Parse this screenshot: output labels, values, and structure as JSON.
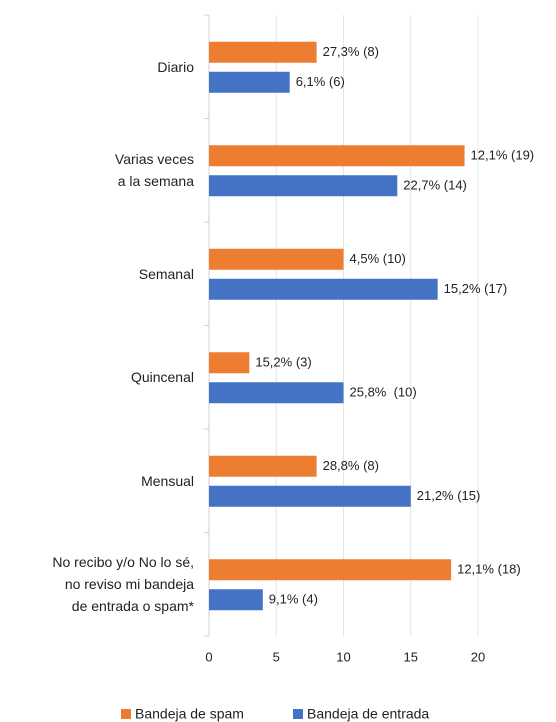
{
  "chart_data": {
    "type": "hbar",
    "categories": [
      "Diario",
      "Varias veces\na la semana",
      "Semanal",
      "Quincenal",
      "Mensual",
      "No recibo y/o No lo sé,\nno reviso mi bandeja\nde entrada o spam*"
    ],
    "series": [
      {
        "name": "Bandeja de spam",
        "color": "#ED7D31",
        "values": [
          8,
          19,
          10,
          3,
          8,
          18
        ],
        "value_labels": [
          "27,3% (8)",
          "12,1% (19)",
          "4,5% (10)",
          "15,2% (3)",
          "28,8% (8)",
          "12,1% (18)"
        ]
      },
      {
        "name": "Bandeja de entrada",
        "color": "#4472C4",
        "values": [
          6,
          14,
          17,
          10,
          15,
          4
        ],
        "value_labels": [
          "6,1% (6)",
          "22,7% (14)",
          "15,2% (17)",
          "25,8%  (10)",
          "21,2% (15)",
          "9,1% (4)"
        ]
      }
    ],
    "xlim": [
      0,
      20
    ],
    "xticks": [
      0,
      5,
      10,
      15,
      20
    ],
    "grid": true,
    "legend": "bottom"
  }
}
